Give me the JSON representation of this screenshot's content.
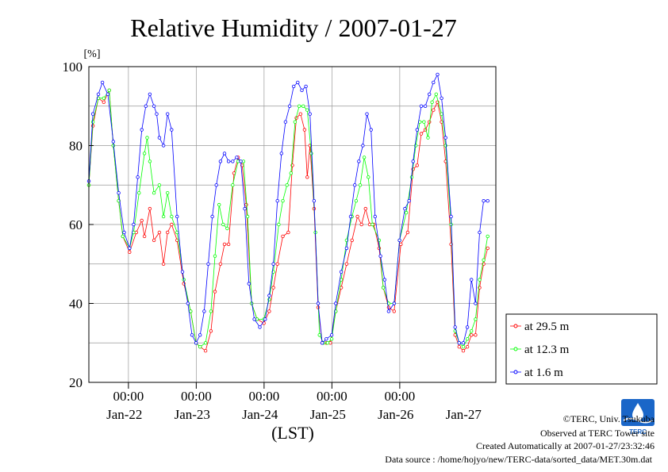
{
  "chart_data": {
    "type": "line",
    "title": "Relative Humidity / 2007-01-27",
    "yunit": "[%]",
    "xlabel": "(LST)",
    "ylim": [
      20,
      100
    ],
    "yticks": [
      20,
      40,
      60,
      80,
      100
    ],
    "xlim": [
      0,
      6
    ],
    "x_axis_note": "x values are days from 2007-01-21 10:00 LST",
    "time_ticks": [
      {
        "x": 0.5833,
        "label": "00:00"
      },
      {
        "x": 1.5833,
        "label": "00:00"
      },
      {
        "x": 2.5833,
        "label": "00:00"
      },
      {
        "x": 3.5833,
        "label": "00:00"
      },
      {
        "x": 4.5833,
        "label": "00:00"
      }
    ],
    "day_labels": [
      {
        "x": 0.5,
        "label": "Jan-22"
      },
      {
        "x": 1.5,
        "label": "Jan-23"
      },
      {
        "x": 2.5,
        "label": "Jan-24"
      },
      {
        "x": 3.5,
        "label": "Jan-25"
      },
      {
        "x": 4.5,
        "label": "Jan-26"
      },
      {
        "x": 5.5,
        "label": "Jan-27"
      }
    ],
    "legend_position": "right",
    "grid": true,
    "series": [
      {
        "name": "at 29.5 m",
        "color": "#ff0000",
        "points": [
          [
            0,
            70
          ],
          [
            0.06,
            85
          ],
          [
            0.14,
            92
          ],
          [
            0.22,
            91
          ],
          [
            0.3,
            94
          ],
          [
            0.36,
            80
          ],
          [
            0.44,
            66
          ],
          [
            0.5,
            57
          ],
          [
            0.6,
            53
          ],
          [
            0.7,
            58
          ],
          [
            0.78,
            61
          ],
          [
            0.82,
            57
          ],
          [
            0.9,
            64
          ],
          [
            0.96,
            56
          ],
          [
            1.04,
            58
          ],
          [
            1.1,
            50
          ],
          [
            1.16,
            58
          ],
          [
            1.22,
            60
          ],
          [
            1.3,
            56
          ],
          [
            1.4,
            45
          ],
          [
            1.5,
            38
          ],
          [
            1.58,
            30
          ],
          [
            1.64,
            29
          ],
          [
            1.72,
            28
          ],
          [
            1.8,
            33
          ],
          [
            1.86,
            43
          ],
          [
            1.94,
            50
          ],
          [
            2.0,
            55
          ],
          [
            2.06,
            55
          ],
          [
            2.14,
            73
          ],
          [
            2.2,
            77
          ],
          [
            2.26,
            75
          ],
          [
            2.32,
            65
          ],
          [
            2.4,
            40
          ],
          [
            2.48,
            36
          ],
          [
            2.58,
            35
          ],
          [
            2.66,
            38
          ],
          [
            2.72,
            44
          ],
          [
            2.78,
            50
          ],
          [
            2.86,
            57
          ],
          [
            2.94,
            58
          ],
          [
            3.0,
            75
          ],
          [
            3.06,
            87
          ],
          [
            3.12,
            88
          ],
          [
            3.18,
            84
          ],
          [
            3.22,
            72
          ],
          [
            3.26,
            80
          ],
          [
            3.32,
            64
          ],
          [
            3.38,
            39
          ],
          [
            3.44,
            30
          ],
          [
            3.5,
            30
          ],
          [
            3.56,
            30
          ],
          [
            3.64,
            38
          ],
          [
            3.72,
            44
          ],
          [
            3.8,
            50
          ],
          [
            3.88,
            56
          ],
          [
            3.96,
            62
          ],
          [
            4.02,
            60
          ],
          [
            4.08,
            64
          ],
          [
            4.14,
            60
          ],
          [
            4.2,
            60
          ],
          [
            4.28,
            54
          ],
          [
            4.34,
            44
          ],
          [
            4.42,
            39
          ],
          [
            4.5,
            38
          ],
          [
            4.6,
            55
          ],
          [
            4.7,
            58
          ],
          [
            4.78,
            74
          ],
          [
            4.84,
            75
          ],
          [
            4.9,
            83
          ],
          [
            4.96,
            84
          ],
          [
            5.02,
            86
          ],
          [
            5.08,
            89
          ],
          [
            5.14,
            91
          ],
          [
            5.2,
            86
          ],
          [
            5.26,
            76
          ],
          [
            5.34,
            55
          ],
          [
            5.4,
            32
          ],
          [
            5.46,
            29
          ],
          [
            5.52,
            28
          ],
          [
            5.58,
            29
          ],
          [
            5.64,
            32
          ],
          [
            5.7,
            32
          ],
          [
            5.76,
            44
          ],
          [
            5.82,
            50
          ],
          [
            5.88,
            54
          ]
        ]
      },
      {
        "name": "at 12.3 m",
        "color": "#00ff00",
        "points": [
          [
            0,
            70
          ],
          [
            0.06,
            86
          ],
          [
            0.14,
            92
          ],
          [
            0.22,
            92
          ],
          [
            0.3,
            94
          ],
          [
            0.36,
            80
          ],
          [
            0.44,
            66
          ],
          [
            0.5,
            57
          ],
          [
            0.6,
            54
          ],
          [
            0.66,
            58
          ],
          [
            0.74,
            68
          ],
          [
            0.82,
            78
          ],
          [
            0.86,
            82
          ],
          [
            0.9,
            76
          ],
          [
            0.96,
            68
          ],
          [
            1.04,
            70
          ],
          [
            1.1,
            62
          ],
          [
            1.16,
            68
          ],
          [
            1.22,
            62
          ],
          [
            1.3,
            58
          ],
          [
            1.4,
            46
          ],
          [
            1.5,
            38
          ],
          [
            1.58,
            30
          ],
          [
            1.64,
            29
          ],
          [
            1.72,
            30
          ],
          [
            1.8,
            38
          ],
          [
            1.86,
            52
          ],
          [
            1.92,
            65
          ],
          [
            1.98,
            60
          ],
          [
            2.04,
            59
          ],
          [
            2.12,
            70
          ],
          [
            2.2,
            76
          ],
          [
            2.28,
            76
          ],
          [
            2.34,
            62
          ],
          [
            2.4,
            40
          ],
          [
            2.48,
            36
          ],
          [
            2.58,
            36
          ],
          [
            2.66,
            41
          ],
          [
            2.72,
            48
          ],
          [
            2.8,
            60
          ],
          [
            2.86,
            66
          ],
          [
            2.92,
            70
          ],
          [
            2.98,
            73
          ],
          [
            3.04,
            86
          ],
          [
            3.1,
            90
          ],
          [
            3.16,
            90
          ],
          [
            3.22,
            89
          ],
          [
            3.28,
            78
          ],
          [
            3.34,
            58
          ],
          [
            3.4,
            32
          ],
          [
            3.46,
            30
          ],
          [
            3.52,
            30
          ],
          [
            3.58,
            31
          ],
          [
            3.64,
            38
          ],
          [
            3.72,
            46
          ],
          [
            3.8,
            56
          ],
          [
            3.88,
            62
          ],
          [
            3.94,
            66
          ],
          [
            4.0,
            70
          ],
          [
            4.06,
            77
          ],
          [
            4.12,
            72
          ],
          [
            4.18,
            60
          ],
          [
            4.28,
            56
          ],
          [
            4.34,
            44
          ],
          [
            4.42,
            40
          ],
          [
            4.5,
            40
          ],
          [
            4.58,
            56
          ],
          [
            4.68,
            63
          ],
          [
            4.76,
            72
          ],
          [
            4.82,
            80
          ],
          [
            4.88,
            86
          ],
          [
            4.94,
            86
          ],
          [
            5.0,
            82
          ],
          [
            5.06,
            91
          ],
          [
            5.12,
            93
          ],
          [
            5.2,
            88
          ],
          [
            5.26,
            80
          ],
          [
            5.34,
            60
          ],
          [
            5.4,
            33
          ],
          [
            5.46,
            30
          ],
          [
            5.52,
            29
          ],
          [
            5.58,
            31
          ],
          [
            5.64,
            33
          ],
          [
            5.7,
            36
          ],
          [
            5.76,
            46
          ],
          [
            5.82,
            51
          ],
          [
            5.88,
            57
          ]
        ]
      },
      {
        "name": "at 1.6 m",
        "color": "#0000ff",
        "points": [
          [
            0,
            71
          ],
          [
            0.06,
            88
          ],
          [
            0.14,
            93
          ],
          [
            0.2,
            96
          ],
          [
            0.28,
            93
          ],
          [
            0.36,
            81
          ],
          [
            0.44,
            68
          ],
          [
            0.52,
            58
          ],
          [
            0.6,
            54
          ],
          [
            0.66,
            60
          ],
          [
            0.72,
            72
          ],
          [
            0.78,
            84
          ],
          [
            0.84,
            90
          ],
          [
            0.9,
            93
          ],
          [
            0.96,
            90
          ],
          [
            1.0,
            88
          ],
          [
            1.04,
            82
          ],
          [
            1.1,
            80
          ],
          [
            1.16,
            88
          ],
          [
            1.22,
            84
          ],
          [
            1.3,
            62
          ],
          [
            1.38,
            48
          ],
          [
            1.46,
            40
          ],
          [
            1.52,
            32
          ],
          [
            1.58,
            30
          ],
          [
            1.64,
            32
          ],
          [
            1.7,
            38
          ],
          [
            1.76,
            50
          ],
          [
            1.82,
            62
          ],
          [
            1.88,
            70
          ],
          [
            1.94,
            76
          ],
          [
            2.0,
            78
          ],
          [
            2.06,
            76
          ],
          [
            2.12,
            76
          ],
          [
            2.18,
            77
          ],
          [
            2.24,
            76
          ],
          [
            2.3,
            64
          ],
          [
            2.36,
            45
          ],
          [
            2.44,
            36
          ],
          [
            2.52,
            34
          ],
          [
            2.6,
            36
          ],
          [
            2.66,
            42
          ],
          [
            2.72,
            50
          ],
          [
            2.78,
            66
          ],
          [
            2.84,
            78
          ],
          [
            2.9,
            86
          ],
          [
            2.96,
            90
          ],
          [
            3.02,
            95
          ],
          [
            3.08,
            96
          ],
          [
            3.14,
            94
          ],
          [
            3.2,
            95
          ],
          [
            3.26,
            88
          ],
          [
            3.32,
            66
          ],
          [
            3.38,
            40
          ],
          [
            3.44,
            30
          ],
          [
            3.5,
            31
          ],
          [
            3.58,
            32
          ],
          [
            3.64,
            40
          ],
          [
            3.72,
            48
          ],
          [
            3.8,
            54
          ],
          [
            3.86,
            62
          ],
          [
            3.92,
            70
          ],
          [
            3.98,
            76
          ],
          [
            4.04,
            80
          ],
          [
            4.1,
            88
          ],
          [
            4.16,
            84
          ],
          [
            4.22,
            62
          ],
          [
            4.3,
            52
          ],
          [
            4.36,
            46
          ],
          [
            4.42,
            38
          ],
          [
            4.5,
            40
          ],
          [
            4.58,
            56
          ],
          [
            4.66,
            64
          ],
          [
            4.72,
            66
          ],
          [
            4.78,
            76
          ],
          [
            4.84,
            84
          ],
          [
            4.9,
            90
          ],
          [
            4.96,
            90
          ],
          [
            5.02,
            93
          ],
          [
            5.08,
            96
          ],
          [
            5.14,
            98
          ],
          [
            5.2,
            92
          ],
          [
            5.26,
            82
          ],
          [
            5.34,
            62
          ],
          [
            5.4,
            34
          ],
          [
            5.46,
            30
          ],
          [
            5.52,
            30
          ],
          [
            5.58,
            34
          ],
          [
            5.64,
            46
          ],
          [
            5.7,
            40
          ],
          [
            5.76,
            58
          ],
          [
            5.82,
            66
          ],
          [
            5.88,
            66
          ]
        ]
      }
    ]
  },
  "footer": {
    "copyright": "©TERC, Univ. Tsukuba",
    "site": "Observed at TERC Tower site",
    "created": "Created Automatically at 2007-01-27/23:32:46",
    "source": "Data source : /home/hojyo/new/TERC-data/sorted_data/MET.30m.dat"
  },
  "logo": {
    "text": "TERC",
    "color": "#1a66c8"
  }
}
